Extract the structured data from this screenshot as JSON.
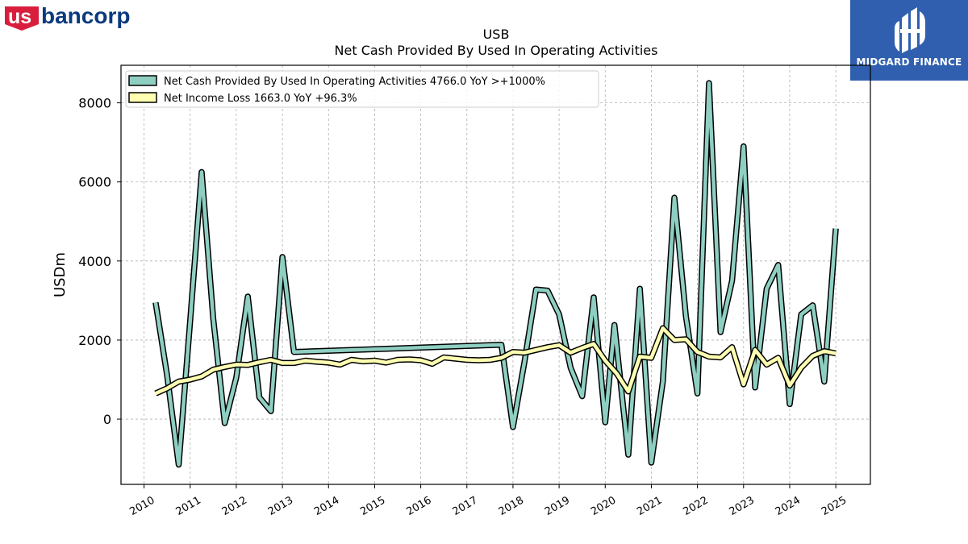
{
  "logos": {
    "left": {
      "us": "us",
      "bancorp": "bancorp",
      "colors": {
        "us": "#d81e3c",
        "bancorp": "#0a3a7e"
      }
    },
    "right": {
      "text": "MIDGARD FINANCE",
      "color": "#2f5fae"
    }
  },
  "chart_data": {
    "type": "line",
    "title": "USB",
    "subtitle": "Net Cash Provided By Used In Operating Activities",
    "ylabel": "USDm",
    "xlabel": "",
    "xlim": [
      2009.5,
      2025.75
    ],
    "ylim": [
      -1650,
      8950
    ],
    "yticks": [
      0,
      2000,
      4000,
      6000,
      8000
    ],
    "xticks": [
      "2010",
      "2011",
      "2012",
      "2013",
      "2014",
      "2015",
      "2016",
      "2017",
      "2018",
      "2019",
      "2020",
      "2021",
      "2022",
      "2023",
      "2024",
      "2025"
    ],
    "grid": true,
    "legend_position": "top-left",
    "series": [
      {
        "name": "Net Cash Provided By Used In Operating Activities  4766.0 YoY >+1000%",
        "color": "#8ecfc2",
        "points": [
          [
            2010.25,
            2950
          ],
          [
            2010.5,
            1100
          ],
          [
            2010.75,
            -1150
          ],
          [
            2011.0,
            2500
          ],
          [
            2011.25,
            6250
          ],
          [
            2011.5,
            2550
          ],
          [
            2011.75,
            -100
          ],
          [
            2012.0,
            1050
          ],
          [
            2012.25,
            3100
          ],
          [
            2012.5,
            550
          ],
          [
            2012.75,
            200
          ],
          [
            2013.0,
            4100
          ],
          [
            2013.25,
            1700
          ],
          [
            2017.75,
            1880
          ],
          [
            2018.0,
            -200
          ],
          [
            2018.25,
            1450
          ],
          [
            2018.5,
            3280
          ],
          [
            2018.75,
            3250
          ],
          [
            2019.0,
            2650
          ],
          [
            2019.25,
            1300
          ],
          [
            2019.5,
            580
          ],
          [
            2019.75,
            3080
          ],
          [
            2020.0,
            -80
          ],
          [
            2020.2,
            2380
          ],
          [
            2020.5,
            -900
          ],
          [
            2020.75,
            3300
          ],
          [
            2021.0,
            -1100
          ],
          [
            2021.25,
            950
          ],
          [
            2021.5,
            5600
          ],
          [
            2021.75,
            2600
          ],
          [
            2022.0,
            650
          ],
          [
            2022.25,
            8500
          ],
          [
            2022.5,
            2200
          ],
          [
            2022.75,
            3500
          ],
          [
            2023.0,
            6900
          ],
          [
            2023.25,
            800
          ],
          [
            2023.5,
            3300
          ],
          [
            2023.75,
            3900
          ],
          [
            2024.0,
            380
          ],
          [
            2024.25,
            2650
          ],
          [
            2024.5,
            2880
          ],
          [
            2024.75,
            950
          ],
          [
            2025.0,
            4820
          ]
        ]
      },
      {
        "name": "Net Income Loss  1663.0 YoY +96.3%",
        "color": "#ffffb2",
        "points": [
          [
            2010.25,
            650
          ],
          [
            2010.5,
            780
          ],
          [
            2010.75,
            950
          ],
          [
            2011.0,
            1000
          ],
          [
            2011.25,
            1080
          ],
          [
            2011.5,
            1250
          ],
          [
            2011.75,
            1320
          ],
          [
            2012.0,
            1380
          ],
          [
            2012.25,
            1370
          ],
          [
            2012.5,
            1440
          ],
          [
            2012.75,
            1500
          ],
          [
            2013.0,
            1420
          ],
          [
            2013.25,
            1420
          ],
          [
            2013.5,
            1480
          ],
          [
            2013.75,
            1450
          ],
          [
            2014.0,
            1430
          ],
          [
            2014.25,
            1380
          ],
          [
            2014.5,
            1500
          ],
          [
            2014.75,
            1460
          ],
          [
            2015.0,
            1480
          ],
          [
            2015.25,
            1430
          ],
          [
            2015.5,
            1500
          ],
          [
            2015.75,
            1510
          ],
          [
            2016.0,
            1490
          ],
          [
            2016.25,
            1400
          ],
          [
            2016.5,
            1560
          ],
          [
            2016.75,
            1530
          ],
          [
            2017.0,
            1500
          ],
          [
            2017.25,
            1490
          ],
          [
            2017.5,
            1500
          ],
          [
            2017.75,
            1550
          ],
          [
            2018.0,
            1700
          ],
          [
            2018.25,
            1680
          ],
          [
            2018.5,
            1750
          ],
          [
            2018.75,
            1820
          ],
          [
            2019.0,
            1870
          ],
          [
            2019.25,
            1680
          ],
          [
            2019.5,
            1800
          ],
          [
            2019.75,
            1900
          ],
          [
            2020.0,
            1480
          ],
          [
            2020.25,
            1150
          ],
          [
            2020.5,
            700
          ],
          [
            2020.75,
            1580
          ],
          [
            2021.0,
            1550
          ],
          [
            2021.25,
            2300
          ],
          [
            2021.5,
            2000
          ],
          [
            2021.75,
            2020
          ],
          [
            2022.0,
            1700
          ],
          [
            2022.25,
            1580
          ],
          [
            2022.5,
            1560
          ],
          [
            2022.75,
            1820
          ],
          [
            2023.0,
            880
          ],
          [
            2023.25,
            1750
          ],
          [
            2023.5,
            1380
          ],
          [
            2023.75,
            1550
          ],
          [
            2024.0,
            850
          ],
          [
            2024.25,
            1300
          ],
          [
            2024.5,
            1600
          ],
          [
            2024.75,
            1720
          ],
          [
            2025.0,
            1663
          ]
        ]
      }
    ]
  }
}
